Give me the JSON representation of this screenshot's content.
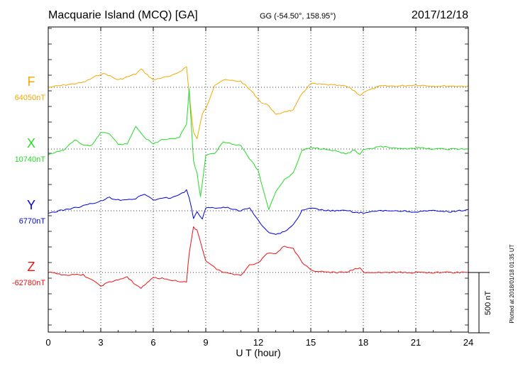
{
  "header": {
    "station": "Macquarie Island (MCQ)  [GA]",
    "coords": "GG (-54.50°, 158.95°)",
    "date": "2017/12/18"
  },
  "footer": {
    "plotted": "Plotted at 2018/01/18 01:35 UT",
    "scale_label": "500 nT"
  },
  "chart_data": {
    "type": "line",
    "xlabel": "U T (hour)",
    "xlim": [
      0,
      24
    ],
    "xticks": [
      "0",
      "3",
      "6",
      "9",
      "12",
      "15",
      "18",
      "21",
      "24"
    ],
    "scale_bar_nT": 500,
    "grid": "dotted vertical every 3 h",
    "series": [
      {
        "name": "F",
        "baseline_label": "64050nT",
        "baseline_nT": 64050,
        "color": "#f5a800",
        "x": [
          0,
          1,
          2,
          3,
          3.3,
          4,
          5,
          5.3,
          6,
          6.5,
          7,
          7.5,
          7.9,
          8.05,
          8.3,
          8.5,
          8.8,
          9,
          9.5,
          10,
          11,
          11.6,
          12.2,
          12.6,
          13,
          13.5,
          14,
          14.5,
          15,
          16,
          17,
          17.5,
          17.8,
          18,
          19,
          20,
          21,
          22,
          23,
          24
        ],
        "y": [
          0,
          20,
          40,
          110,
          110,
          60,
          110,
          150,
          60,
          80,
          90,
          130,
          170,
          -50,
          -370,
          -430,
          -220,
          -180,
          20,
          60,
          50,
          -30,
          -130,
          -150,
          -230,
          -200,
          -190,
          -50,
          30,
          20,
          10,
          -30,
          -70,
          -40,
          10,
          10,
          20,
          10,
          10,
          10
        ]
      },
      {
        "name": "X",
        "baseline_label": "10740nT",
        "baseline_nT": 10740,
        "color": "#22dd22",
        "x": [
          0,
          1,
          1.5,
          2,
          2.5,
          3,
          3.5,
          4,
          4.5,
          5,
          5.5,
          6,
          6.5,
          7,
          7.5,
          7.9,
          8.05,
          8.3,
          8.5,
          8.7,
          9,
          9.5,
          10,
          11,
          11.5,
          12,
          12.3,
          12.6,
          13,
          13.5,
          14,
          14.5,
          15,
          16,
          17,
          17.5,
          17.8,
          18,
          19,
          20,
          21,
          22,
          23,
          24
        ],
        "y": [
          -50,
          0,
          80,
          30,
          30,
          140,
          120,
          40,
          40,
          190,
          100,
          40,
          80,
          80,
          100,
          210,
          500,
          -100,
          -200,
          -400,
          -50,
          -40,
          60,
          30,
          -80,
          -180,
          -350,
          -500,
          -350,
          -250,
          -200,
          -10,
          10,
          0,
          -40,
          -10,
          -50,
          -10,
          20,
          0,
          10,
          0,
          0,
          0
        ]
      },
      {
        "name": "Y",
        "baseline_label": "6770nT",
        "baseline_nT": 6770,
        "color": "#0000dd",
        "x": [
          0,
          1,
          2,
          3,
          3.5,
          4,
          5,
          5.5,
          6,
          7,
          7.5,
          7.9,
          8.05,
          8.3,
          8.5,
          8.8,
          9,
          10,
          11,
          11.5,
          12,
          12.5,
          13,
          13.5,
          14,
          14.5,
          15,
          16,
          17,
          18,
          19,
          20,
          21,
          22,
          23,
          24
        ],
        "y": [
          -20,
          10,
          40,
          80,
          110,
          90,
          100,
          140,
          90,
          110,
          130,
          170,
          110,
          -60,
          -10,
          -70,
          20,
          30,
          0,
          30,
          -80,
          -170,
          -200,
          -170,
          -120,
          0,
          20,
          0,
          0,
          -20,
          0,
          0,
          -10,
          0,
          -10,
          10
        ]
      },
      {
        "name": "Z",
        "baseline_label": "-62780nT",
        "baseline_nT": -62780,
        "color": "#ee1111",
        "x": [
          0,
          1,
          2,
          3,
          3.5,
          4,
          4.5,
          5,
          5.3,
          6,
          7,
          7.5,
          7.9,
          8.05,
          8.3,
          8.5,
          8.8,
          9,
          9.5,
          10,
          11,
          11.5,
          12,
          12.5,
          13,
          13.5,
          14,
          14.5,
          15,
          16,
          17,
          17.8,
          18,
          19,
          20,
          21,
          22,
          23,
          24
        ],
        "y": [
          0,
          -20,
          -20,
          -110,
          -80,
          -60,
          -40,
          -100,
          -130,
          -40,
          -60,
          -80,
          -80,
          160,
          380,
          350,
          200,
          100,
          40,
          0,
          -20,
          60,
          80,
          160,
          160,
          220,
          200,
          80,
          20,
          0,
          0,
          40,
          0,
          0,
          0,
          0,
          0,
          0,
          0
        ]
      }
    ]
  }
}
